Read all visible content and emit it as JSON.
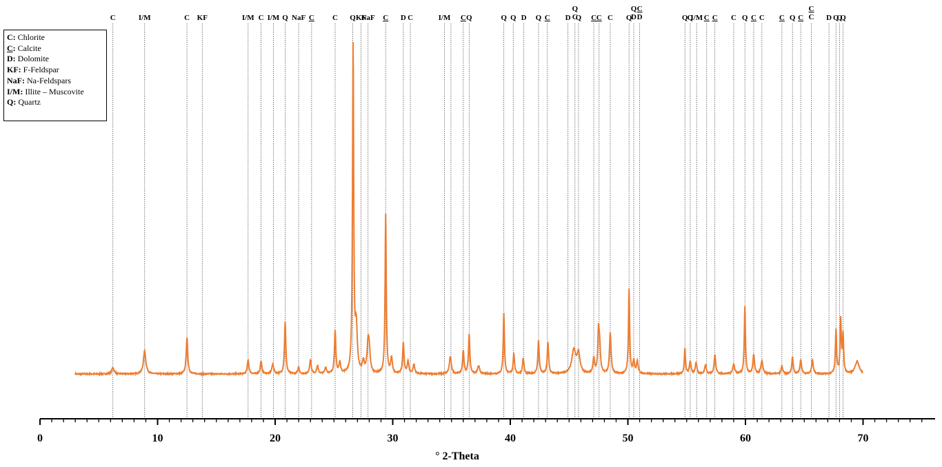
{
  "chart_data": {
    "type": "line",
    "title": "",
    "xlabel": "° 2-Theta",
    "ylabel": "",
    "xlim": [
      0,
      75
    ],
    "ylim": [
      0,
      1.2
    ],
    "x_ticks": [
      "0",
      "10",
      "20",
      "30",
      "40",
      "50",
      "60",
      "70"
    ],
    "x_tick_values": [
      0,
      10,
      20,
      30,
      40,
      50,
      60,
      70
    ],
    "grid": false,
    "line_color": "#ed7d31",
    "series": [
      {
        "baseline": 0.15,
        "x_start": 3,
        "x_end": 70,
        "peaks": [
          {
            "x": 6.2,
            "h": 0.02,
            "w": 0.12
          },
          {
            "x": 8.9,
            "h": 0.075,
            "w": 0.12
          },
          {
            "x": 12.5,
            "h": 0.115,
            "w": 0.08
          },
          {
            "x": 17.7,
            "h": 0.045,
            "w": 0.08
          },
          {
            "x": 18.8,
            "h": 0.04,
            "w": 0.08
          },
          {
            "x": 19.8,
            "h": 0.03,
            "w": 0.1
          },
          {
            "x": 20.85,
            "h": 0.165,
            "w": 0.07
          },
          {
            "x": 22.0,
            "h": 0.02,
            "w": 0.08
          },
          {
            "x": 23.0,
            "h": 0.045,
            "w": 0.08
          },
          {
            "x": 23.6,
            "h": 0.025,
            "w": 0.08
          },
          {
            "x": 24.3,
            "h": 0.02,
            "w": 0.08
          },
          {
            "x": 25.1,
            "h": 0.135,
            "w": 0.07
          },
          {
            "x": 25.5,
            "h": 0.035,
            "w": 0.08
          },
          {
            "x": 26.63,
            "h": 1.05,
            "w": 0.06
          },
          {
            "x": 26.9,
            "h": 0.14,
            "w": 0.1
          },
          {
            "x": 27.5,
            "h": 0.035,
            "w": 0.1
          },
          {
            "x": 27.9,
            "h": 0.085,
            "w": 0.1
          },
          {
            "x": 28.0,
            "h": 0.06,
            "w": 0.1
          },
          {
            "x": 29.4,
            "h": 0.51,
            "w": 0.06
          },
          {
            "x": 29.9,
            "h": 0.05,
            "w": 0.08
          },
          {
            "x": 30.9,
            "h": 0.1,
            "w": 0.07
          },
          {
            "x": 31.3,
            "h": 0.04,
            "w": 0.08
          },
          {
            "x": 31.8,
            "h": 0.03,
            "w": 0.08
          },
          {
            "x": 34.9,
            "h": 0.055,
            "w": 0.1
          },
          {
            "x": 36.0,
            "h": 0.075,
            "w": 0.07
          },
          {
            "x": 36.5,
            "h": 0.125,
            "w": 0.07
          },
          {
            "x": 37.3,
            "h": 0.025,
            "w": 0.1
          },
          {
            "x": 39.45,
            "h": 0.195,
            "w": 0.06
          },
          {
            "x": 40.3,
            "h": 0.065,
            "w": 0.07
          },
          {
            "x": 41.1,
            "h": 0.05,
            "w": 0.07
          },
          {
            "x": 42.4,
            "h": 0.105,
            "w": 0.07
          },
          {
            "x": 43.2,
            "h": 0.1,
            "w": 0.07
          },
          {
            "x": 45.4,
            "h": 0.075,
            "w": 0.2
          },
          {
            "x": 45.8,
            "h": 0.06,
            "w": 0.15
          },
          {
            "x": 47.1,
            "h": 0.05,
            "w": 0.08
          },
          {
            "x": 47.5,
            "h": 0.125,
            "w": 0.07
          },
          {
            "x": 47.6,
            "h": 0.08,
            "w": 0.08
          },
          {
            "x": 48.5,
            "h": 0.13,
            "w": 0.08
          },
          {
            "x": 50.1,
            "h": 0.27,
            "w": 0.06
          },
          {
            "x": 50.5,
            "h": 0.04,
            "w": 0.08
          },
          {
            "x": 50.8,
            "h": 0.04,
            "w": 0.08
          },
          {
            "x": 54.85,
            "h": 0.08,
            "w": 0.06
          },
          {
            "x": 55.3,
            "h": 0.04,
            "w": 0.08
          },
          {
            "x": 55.8,
            "h": 0.035,
            "w": 0.08
          },
          {
            "x": 56.6,
            "h": 0.03,
            "w": 0.08
          },
          {
            "x": 57.4,
            "h": 0.06,
            "w": 0.08
          },
          {
            "x": 59.0,
            "h": 0.03,
            "w": 0.1
          },
          {
            "x": 59.95,
            "h": 0.215,
            "w": 0.06
          },
          {
            "x": 60.7,
            "h": 0.06,
            "w": 0.08
          },
          {
            "x": 61.4,
            "h": 0.04,
            "w": 0.1
          },
          {
            "x": 63.1,
            "h": 0.025,
            "w": 0.08
          },
          {
            "x": 64.0,
            "h": 0.055,
            "w": 0.07
          },
          {
            "x": 64.7,
            "h": 0.045,
            "w": 0.08
          },
          {
            "x": 65.7,
            "h": 0.045,
            "w": 0.08
          },
          {
            "x": 67.7,
            "h": 0.14,
            "w": 0.06
          },
          {
            "x": 68.1,
            "h": 0.17,
            "w": 0.06
          },
          {
            "x": 68.3,
            "h": 0.12,
            "w": 0.06
          },
          {
            "x": 69.5,
            "h": 0.04,
            "w": 0.2
          }
        ]
      }
    ],
    "reference_lines": [
      {
        "x": 6.2,
        "labels": [
          {
            "t": "C",
            "u": false
          }
        ]
      },
      {
        "x": 8.9,
        "labels": [
          {
            "t": "I/M",
            "u": false
          }
        ]
      },
      {
        "x": 12.5,
        "labels": [
          {
            "t": "C",
            "u": false
          }
        ]
      },
      {
        "x": 13.8,
        "labels": [
          {
            "t": "KF",
            "u": false
          }
        ]
      },
      {
        "x": 17.7,
        "labels": [
          {
            "t": "I/M",
            "u": false
          }
        ]
      },
      {
        "x": 18.8,
        "labels": [
          {
            "t": "C",
            "u": false
          }
        ]
      },
      {
        "x": 19.85,
        "labels": [
          {
            "t": "I/M",
            "u": false
          }
        ]
      },
      {
        "x": 20.85,
        "labels": [
          {
            "t": "Q",
            "u": false
          }
        ]
      },
      {
        "x": 22.0,
        "labels": [
          {
            "t": "NaF",
            "u": false
          }
        ]
      },
      {
        "x": 23.1,
        "labels": [
          {
            "t": "C",
            "u": true
          }
        ]
      },
      {
        "x": 25.1,
        "labels": [
          {
            "t": "C",
            "u": false
          }
        ]
      },
      {
        "x": 26.6,
        "labels": [
          {
            "t": "Q",
            "u": false
          }
        ]
      },
      {
        "x": 27.3,
        "labels": [
          {
            "t": "KF",
            "u": false
          }
        ]
      },
      {
        "x": 27.9,
        "labels": [
          {
            "t": "NaF",
            "u": false
          }
        ]
      },
      {
        "x": 29.4,
        "labels": [
          {
            "t": "C",
            "u": true
          }
        ]
      },
      {
        "x": 30.9,
        "labels": [
          {
            "t": "D",
            "u": false
          }
        ]
      },
      {
        "x": 31.5,
        "labels": [
          {
            "t": "C",
            "u": false
          }
        ]
      },
      {
        "x": 34.4,
        "labels": [
          {
            "t": "I/M",
            "u": false
          }
        ]
      },
      {
        "x": 34.95,
        "labels": [
          {
            "t": "",
            "u": false
          }
        ]
      },
      {
        "x": 36.0,
        "labels": [
          {
            "t": "C",
            "u": true
          }
        ]
      },
      {
        "x": 36.5,
        "labels": [
          {
            "t": "Q",
            "u": false
          }
        ]
      },
      {
        "x": 39.45,
        "labels": [
          {
            "t": "Q",
            "u": false
          }
        ]
      },
      {
        "x": 40.25,
        "labels": [
          {
            "t": "Q",
            "u": false
          }
        ]
      },
      {
        "x": 41.15,
        "labels": [
          {
            "t": "D",
            "u": false
          }
        ]
      },
      {
        "x": 42.4,
        "labels": [
          {
            "t": "Q",
            "u": false
          }
        ]
      },
      {
        "x": 43.15,
        "labels": [
          {
            "t": "C",
            "u": true
          }
        ]
      },
      {
        "x": 44.9,
        "labels": [
          {
            "t": "D",
            "u": false
          }
        ]
      },
      {
        "x": 45.5,
        "labels": [
          {
            "t": "Q",
            "u": false
          },
          {
            "t": "C",
            "u": false
          }
        ]
      },
      {
        "x": 45.8,
        "labels": [
          {
            "t": "Q",
            "u": false
          }
        ]
      },
      {
        "x": 47.1,
        "labels": [
          {
            "t": "C",
            "u": true
          }
        ]
      },
      {
        "x": 47.55,
        "labels": [
          {
            "t": "C",
            "u": true
          }
        ]
      },
      {
        "x": 48.5,
        "labels": [
          {
            "t": "C",
            "u": false
          }
        ]
      },
      {
        "x": 50.1,
        "labels": [
          {
            "t": "Q",
            "u": false
          }
        ]
      },
      {
        "x": 50.5,
        "labels": [
          {
            "t": "Q",
            "u": false
          },
          {
            "t": "D",
            "u": false
          }
        ]
      },
      {
        "x": 51.0,
        "labels": [
          {
            "t": "C",
            "u": true
          },
          {
            "t": "D",
            "u": false
          }
        ]
      },
      {
        "x": 54.85,
        "labels": [
          {
            "t": "Q",
            "u": false
          }
        ]
      },
      {
        "x": 55.3,
        "labels": [
          {
            "t": "Q",
            "u": false
          }
        ]
      },
      {
        "x": 55.85,
        "labels": [
          {
            "t": "I/M",
            "u": false
          }
        ]
      },
      {
        "x": 56.7,
        "labels": [
          {
            "t": "C",
            "u": true
          }
        ]
      },
      {
        "x": 57.4,
        "labels": [
          {
            "t": "C",
            "u": true
          }
        ]
      },
      {
        "x": 59.0,
        "labels": [
          {
            "t": "C",
            "u": false
          }
        ]
      },
      {
        "x": 59.95,
        "labels": [
          {
            "t": "Q",
            "u": false
          }
        ]
      },
      {
        "x": 60.7,
        "labels": [
          {
            "t": "C",
            "u": true
          }
        ]
      },
      {
        "x": 61.4,
        "labels": [
          {
            "t": "C",
            "u": false
          }
        ]
      },
      {
        "x": 63.1,
        "labels": [
          {
            "t": "C",
            "u": true
          }
        ]
      },
      {
        "x": 64.0,
        "labels": [
          {
            "t": "Q",
            "u": false
          }
        ]
      },
      {
        "x": 64.7,
        "labels": [
          {
            "t": "C",
            "u": true
          }
        ]
      },
      {
        "x": 65.6,
        "labels": [
          {
            "t": "C",
            "u": true
          },
          {
            "t": "C",
            "u": false
          }
        ]
      },
      {
        "x": 67.1,
        "labels": [
          {
            "t": "D",
            "u": false
          }
        ]
      },
      {
        "x": 67.7,
        "labels": [
          {
            "t": "Q",
            "u": false
          }
        ]
      },
      {
        "x": 68.0,
        "labels": [
          {
            "t": "Q",
            "u": false
          }
        ]
      },
      {
        "x": 68.3,
        "labels": [
          {
            "t": "Q",
            "u": false
          }
        ]
      }
    ],
    "legend": {
      "placement": "top-left",
      "entries": [
        {
          "key": "C:",
          "key_underlined": false,
          "label": " Chlorite"
        },
        {
          "key": "C",
          "key_underlined": true,
          "key_suffix": ":",
          "label": " Calcite"
        },
        {
          "key": "D:",
          "key_underlined": false,
          "label": " Dolomite"
        },
        {
          "key": "KF:",
          "key_underlined": false,
          "label": " F-Feldspar"
        },
        {
          "key": "NaF:",
          "key_underlined": false,
          "label": " Na-Feldspars"
        },
        {
          "key": "I/M:",
          "key_underlined": false,
          "label": " Illite – Muscovite"
        },
        {
          "key": "Q:",
          "key_underlined": false,
          "label": " Quartz"
        }
      ]
    }
  }
}
